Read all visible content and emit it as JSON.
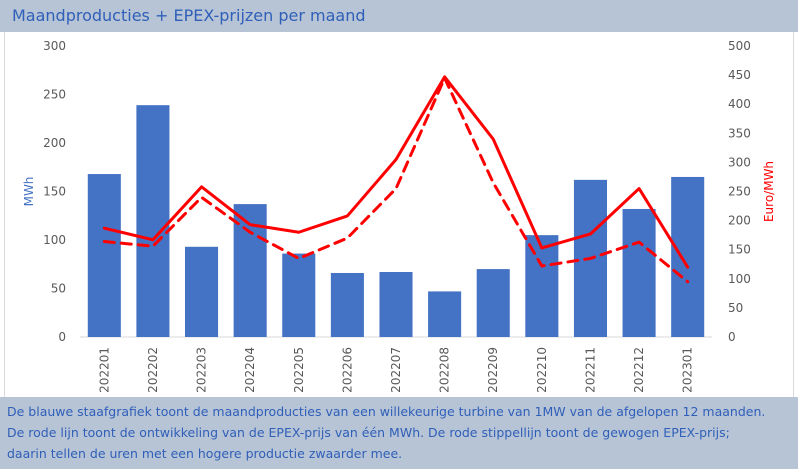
{
  "title": "Maandproducties + EPEX-prijzen per maand",
  "description": [
    "De blauwe staafgrafiek toont de maandproducties van een willekeurige turbine van 1MW van de afgelopen 12 maanden.",
    "De rode lijn toont de ontwikkeling van de EPEX-prijs van één MWh. De rode stippellijn toont de gewogen EPEX-prijs;",
    "daarin tellen de uren met een hogere productie zwaarder mee."
  ],
  "colors": {
    "bars": "#4472c4",
    "price_line": "#ff0000",
    "grid": "#d9d9d9",
    "title_text": "#2f5fb8",
    "panel_bg": "#b7c4d6"
  },
  "chart_data": {
    "type": "bar",
    "categories": [
      "202201",
      "202202",
      "202203",
      "202204",
      "202205",
      "202206",
      "202207",
      "202208",
      "202209",
      "202210",
      "202211",
      "202212",
      "202301"
    ],
    "series": [
      {
        "type": "bar",
        "axis": "left",
        "values": [
          168,
          239,
          93,
          137,
          86,
          66,
          67,
          47,
          70,
          105,
          162,
          132,
          165
        ]
      },
      {
        "type": "line",
        "axis": "right",
        "style": "solid",
        "values": [
          187,
          167,
          258,
          193,
          180,
          208,
          305,
          447,
          340,
          153,
          177,
          255,
          120
        ]
      },
      {
        "type": "line",
        "axis": "right",
        "style": "dashed",
        "values": [
          164,
          156,
          240,
          180,
          135,
          170,
          255,
          445,
          265,
          122,
          135,
          163,
          95
        ]
      }
    ],
    "ylabel": "MWh",
    "y2label": "Euro/MWh",
    "ylim": [
      0,
      300
    ],
    "y2lim": [
      0,
      500
    ],
    "yticks": [
      0,
      50,
      100,
      150,
      200,
      250,
      300
    ],
    "y2ticks": [
      0,
      50,
      100,
      150,
      200,
      250,
      300,
      350,
      400,
      450,
      500
    ],
    "grid": false,
    "legend": "none"
  }
}
